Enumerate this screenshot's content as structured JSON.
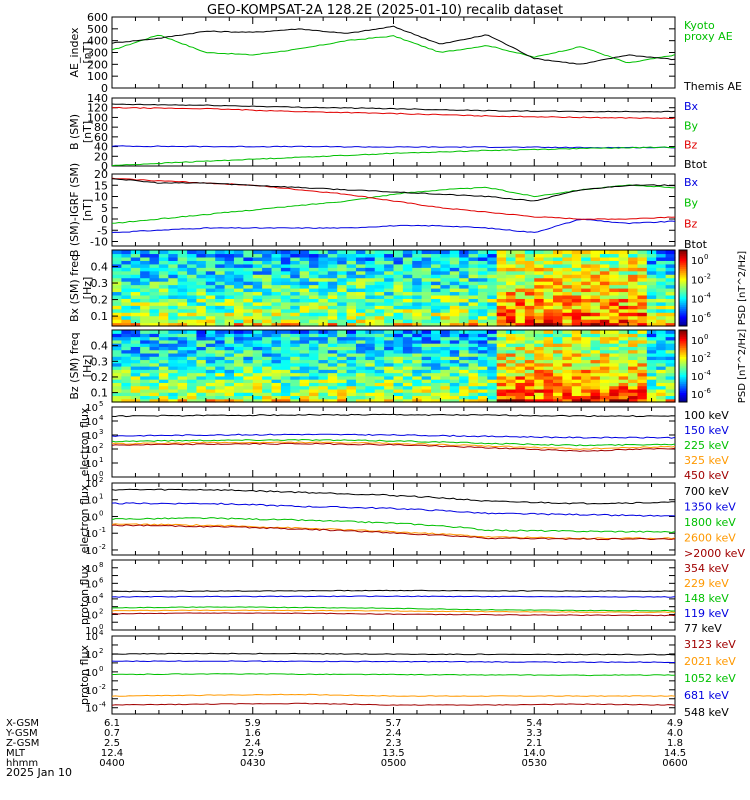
{
  "title": "GEO-KOMPSAT-2A 128.2E (2025-01-10) recalib dataset",
  "date_label": "2025 Jan 10",
  "colorbar_ticks": {
    "bx": [
      "10^0",
      "10^-2",
      "10^-4",
      "10^-6"
    ],
    "bz": [
      "10^0",
      "10^-2",
      "10^-4",
      "10^-6"
    ]
  },
  "ephemeris": {
    "row_labels": [
      "X-GSM",
      "Y-GSM",
      "Z-GSM",
      "MLT",
      "hhmm"
    ],
    "columns": [
      {
        "values": [
          "6.1",
          "0.7",
          "2.5",
          "12.4",
          "0400"
        ]
      },
      {
        "values": [
          "5.9",
          "1.6",
          "2.4",
          "12.9",
          "0430"
        ]
      },
      {
        "values": [
          "5.7",
          "2.4",
          "2.3",
          "13.5",
          "0500"
        ]
      },
      {
        "values": [
          "5.4",
          "3.3",
          "2.1",
          "14.0",
          "0530"
        ]
      },
      {
        "values": [
          "4.9",
          "4.0",
          "1.8",
          "14.5",
          "0600"
        ]
      }
    ]
  },
  "chart_data": [
    {
      "type": "line",
      "id": "ae",
      "ylabel": "AE_index [nT]",
      "ylim": [
        0,
        600
      ],
      "yticks": [
        0,
        100,
        200,
        300,
        400,
        500,
        600
      ],
      "x": [
        0,
        10,
        20,
        30,
        40,
        50,
        60,
        70,
        80,
        90,
        100,
        110,
        120
      ],
      "series": [
        {
          "name": "Kyoto proxy AE",
          "legend_lines": [
            "Kyoto",
            "proxy AE"
          ],
          "color": "#00c000",
          "values": [
            320,
            450,
            300,
            280,
            330,
            400,
            440,
            300,
            360,
            260,
            350,
            210,
            280
          ]
        },
        {
          "name": "Themis AE",
          "color": "#000000",
          "values": [
            380,
            420,
            480,
            470,
            500,
            460,
            520,
            370,
            450,
            250,
            200,
            280,
            240
          ]
        }
      ]
    },
    {
      "type": "line",
      "id": "bsm",
      "ylabel": "B (SM) [nT]",
      "ylim": [
        0,
        140
      ],
      "yticks": [
        0,
        20,
        40,
        60,
        80,
        100,
        120,
        140
      ],
      "x": [
        0,
        20,
        40,
        60,
        80,
        100,
        120
      ],
      "series": [
        {
          "name": "Bx",
          "color": "#0000e0",
          "values": [
            41,
            40,
            40,
            39,
            39,
            38,
            38
          ]
        },
        {
          "name": "By",
          "color": "#00c000",
          "values": [
            1,
            10,
            18,
            26,
            32,
            36,
            39
          ]
        },
        {
          "name": "Bz",
          "color": "#e00000",
          "values": [
            120,
            118,
            112,
            108,
            103,
            100,
            98
          ]
        },
        {
          "name": "Btot",
          "color": "#000000",
          "values": [
            127,
            125,
            121,
            118,
            114,
            112,
            112
          ]
        }
      ]
    },
    {
      "type": "line",
      "id": "bigrf",
      "ylabel": "B (SM)-IGRF (SM) [nT]",
      "ylim": [
        -12,
        20
      ],
      "yticks": [
        -10,
        -5,
        0,
        5,
        10,
        15,
        20
      ],
      "x": [
        0,
        10,
        20,
        30,
        40,
        50,
        60,
        70,
        80,
        90,
        100,
        110,
        120
      ],
      "series": [
        {
          "name": "Bx",
          "color": "#0000e0",
          "values": [
            -6,
            -5,
            -4,
            -4,
            -4,
            -4,
            -3,
            -3,
            -4,
            -6,
            0,
            -2,
            -1
          ]
        },
        {
          "name": "By",
          "color": "#00c000",
          "values": [
            -2,
            0,
            2,
            4,
            6,
            8,
            11,
            13,
            14,
            10,
            13,
            15,
            14
          ]
        },
        {
          "name": "Bz",
          "color": "#e00000",
          "values": [
            18,
            17,
            16,
            15,
            13,
            11,
            8,
            5,
            3,
            1,
            0,
            0,
            1
          ]
        },
        {
          "name": "Btot",
          "color": "#000000",
          "values": [
            18,
            16,
            16,
            15,
            14,
            13,
            12,
            11,
            10,
            8,
            13,
            15,
            15
          ]
        }
      ]
    },
    {
      "type": "heatmap",
      "id": "bxspec",
      "ylabel": "Bx (SM) freq [Hz]",
      "ylim": [
        0.04,
        0.5
      ],
      "yticks": [
        0.1,
        0.2,
        0.3,
        0.4
      ],
      "colorbar_label": "PSD [nT^2/Hz]",
      "color_range": [
        -8,
        2
      ]
    },
    {
      "type": "heatmap",
      "id": "bzspec",
      "ylabel": "Bz (SM) freq [Hz]",
      "ylim": [
        0.04,
        0.5
      ],
      "yticks": [
        0.1,
        0.2,
        0.3,
        0.4
      ],
      "colorbar_label": "PSD [nT^2/Hz]",
      "color_range": [
        -6,
        2
      ]
    },
    {
      "type": "line",
      "id": "e1",
      "ylabel": "electron flux",
      "yscale": "log",
      "ylim": [
        1,
        100000
      ],
      "x": [
        0,
        20,
        40,
        60,
        80,
        100,
        120
      ],
      "series": [
        {
          "name": "100 keV",
          "color": "#000000",
          "values": [
            22000,
            25000,
            27000,
            28000,
            26000,
            23000,
            22000
          ]
        },
        {
          "name": "150 keV",
          "color": "#0000e0",
          "values": [
            850,
            1000,
            1100,
            1000,
            800,
            650,
            650
          ]
        },
        {
          "name": "225 keV",
          "color": "#00c000",
          "values": [
            350,
            420,
            450,
            380,
            250,
            180,
            220
          ]
        },
        {
          "name": "325 keV",
          "color": "#ff9900",
          "values": [
            230,
            280,
            300,
            250,
            160,
            100,
            150
          ]
        },
        {
          "name": "450 keV",
          "color": "#a00000",
          "values": [
            190,
            220,
            240,
            200,
            120,
            70,
            110
          ]
        }
      ]
    },
    {
      "type": "line",
      "id": "e2",
      "ylabel": "electron flux",
      "yscale": "log",
      "ylim": [
        0.005,
        100
      ],
      "x": [
        0,
        20,
        40,
        60,
        80,
        100,
        120
      ],
      "series": [
        {
          "name": "700 keV",
          "color": "#000000",
          "values": [
            40,
            40,
            28,
            18,
            8,
            6,
            7
          ]
        },
        {
          "name": "1350 keV",
          "color": "#0000e0",
          "values": [
            6,
            6,
            4,
            3,
            1.5,
            1.3,
            1.0
          ]
        },
        {
          "name": "1800 keV",
          "color": "#00c000",
          "values": [
            0.7,
            0.8,
            0.6,
            0.4,
            0.15,
            0.13,
            0.12
          ]
        },
        {
          "name": "2600 keV",
          "color": "#ff9900",
          "values": [
            0.35,
            0.3,
            0.2,
            0.12,
            0.06,
            0.05,
            0.05
          ]
        },
        {
          "name": ">2000 keV",
          "color": "#a00000",
          "values": [
            0.3,
            0.25,
            0.18,
            0.1,
            0.05,
            0.045,
            0.045
          ]
        }
      ]
    },
    {
      "type": "line",
      "id": "p1",
      "ylabel": "proton flux",
      "yscale": "log",
      "ylim": [
        1,
        1000000000
      ],
      "x": [
        0,
        20,
        40,
        60,
        80,
        100,
        120
      ],
      "series": [
        {
          "name": "354 keV",
          "color": "#a00000",
          "values": [
            120,
            150,
            140,
            110,
            90,
            80,
            75
          ]
        },
        {
          "name": "229 keV",
          "color": "#ff9900",
          "values": [
            300,
            350,
            320,
            280,
            230,
            200,
            190
          ]
        },
        {
          "name": "148 keV",
          "color": "#00c000",
          "values": [
            700,
            900,
            800,
            600,
            400,
            320,
            300
          ]
        },
        {
          "name": "119 keV",
          "color": "#0000e0",
          "values": [
            18000,
            20000,
            21000,
            22000,
            20000,
            19000,
            18000
          ]
        },
        {
          "name": "77 keV",
          "color": "#000000",
          "values": [
            90000,
            100000,
            110000,
            120000,
            110000,
            100000,
            100000
          ]
        }
      ]
    },
    {
      "type": "line",
      "id": "p2",
      "ylabel": "proton flux",
      "yscale": "log",
      "ylim": [
        2e-05,
        10000
      ],
      "x": [
        0,
        20,
        40,
        60,
        80,
        100,
        120
      ],
      "series": [
        {
          "name": "3123 keV",
          "color": "#a00000",
          "values": [
            0.0002,
            0.00025,
            0.0003,
            0.0002,
            0.0002,
            0.00025,
            0.0002
          ]
        },
        {
          "name": "2021 keV",
          "color": "#ff9900",
          "values": [
            0.002,
            0.0025,
            0.003,
            0.002,
            0.002,
            0.002,
            0.002
          ]
        },
        {
          "name": "1052 keV",
          "color": "#00c000",
          "values": [
            0.5,
            0.6,
            0.55,
            0.5,
            0.45,
            0.42,
            0.45
          ]
        },
        {
          "name": "681 keV",
          "color": "#0000e0",
          "values": [
            15,
            16,
            15,
            14,
            13,
            12,
            12
          ]
        },
        {
          "name": "548 keV",
          "color": "#000000",
          "values": [
            100,
            110,
            105,
            95,
            90,
            85,
            85
          ]
        }
      ]
    }
  ]
}
